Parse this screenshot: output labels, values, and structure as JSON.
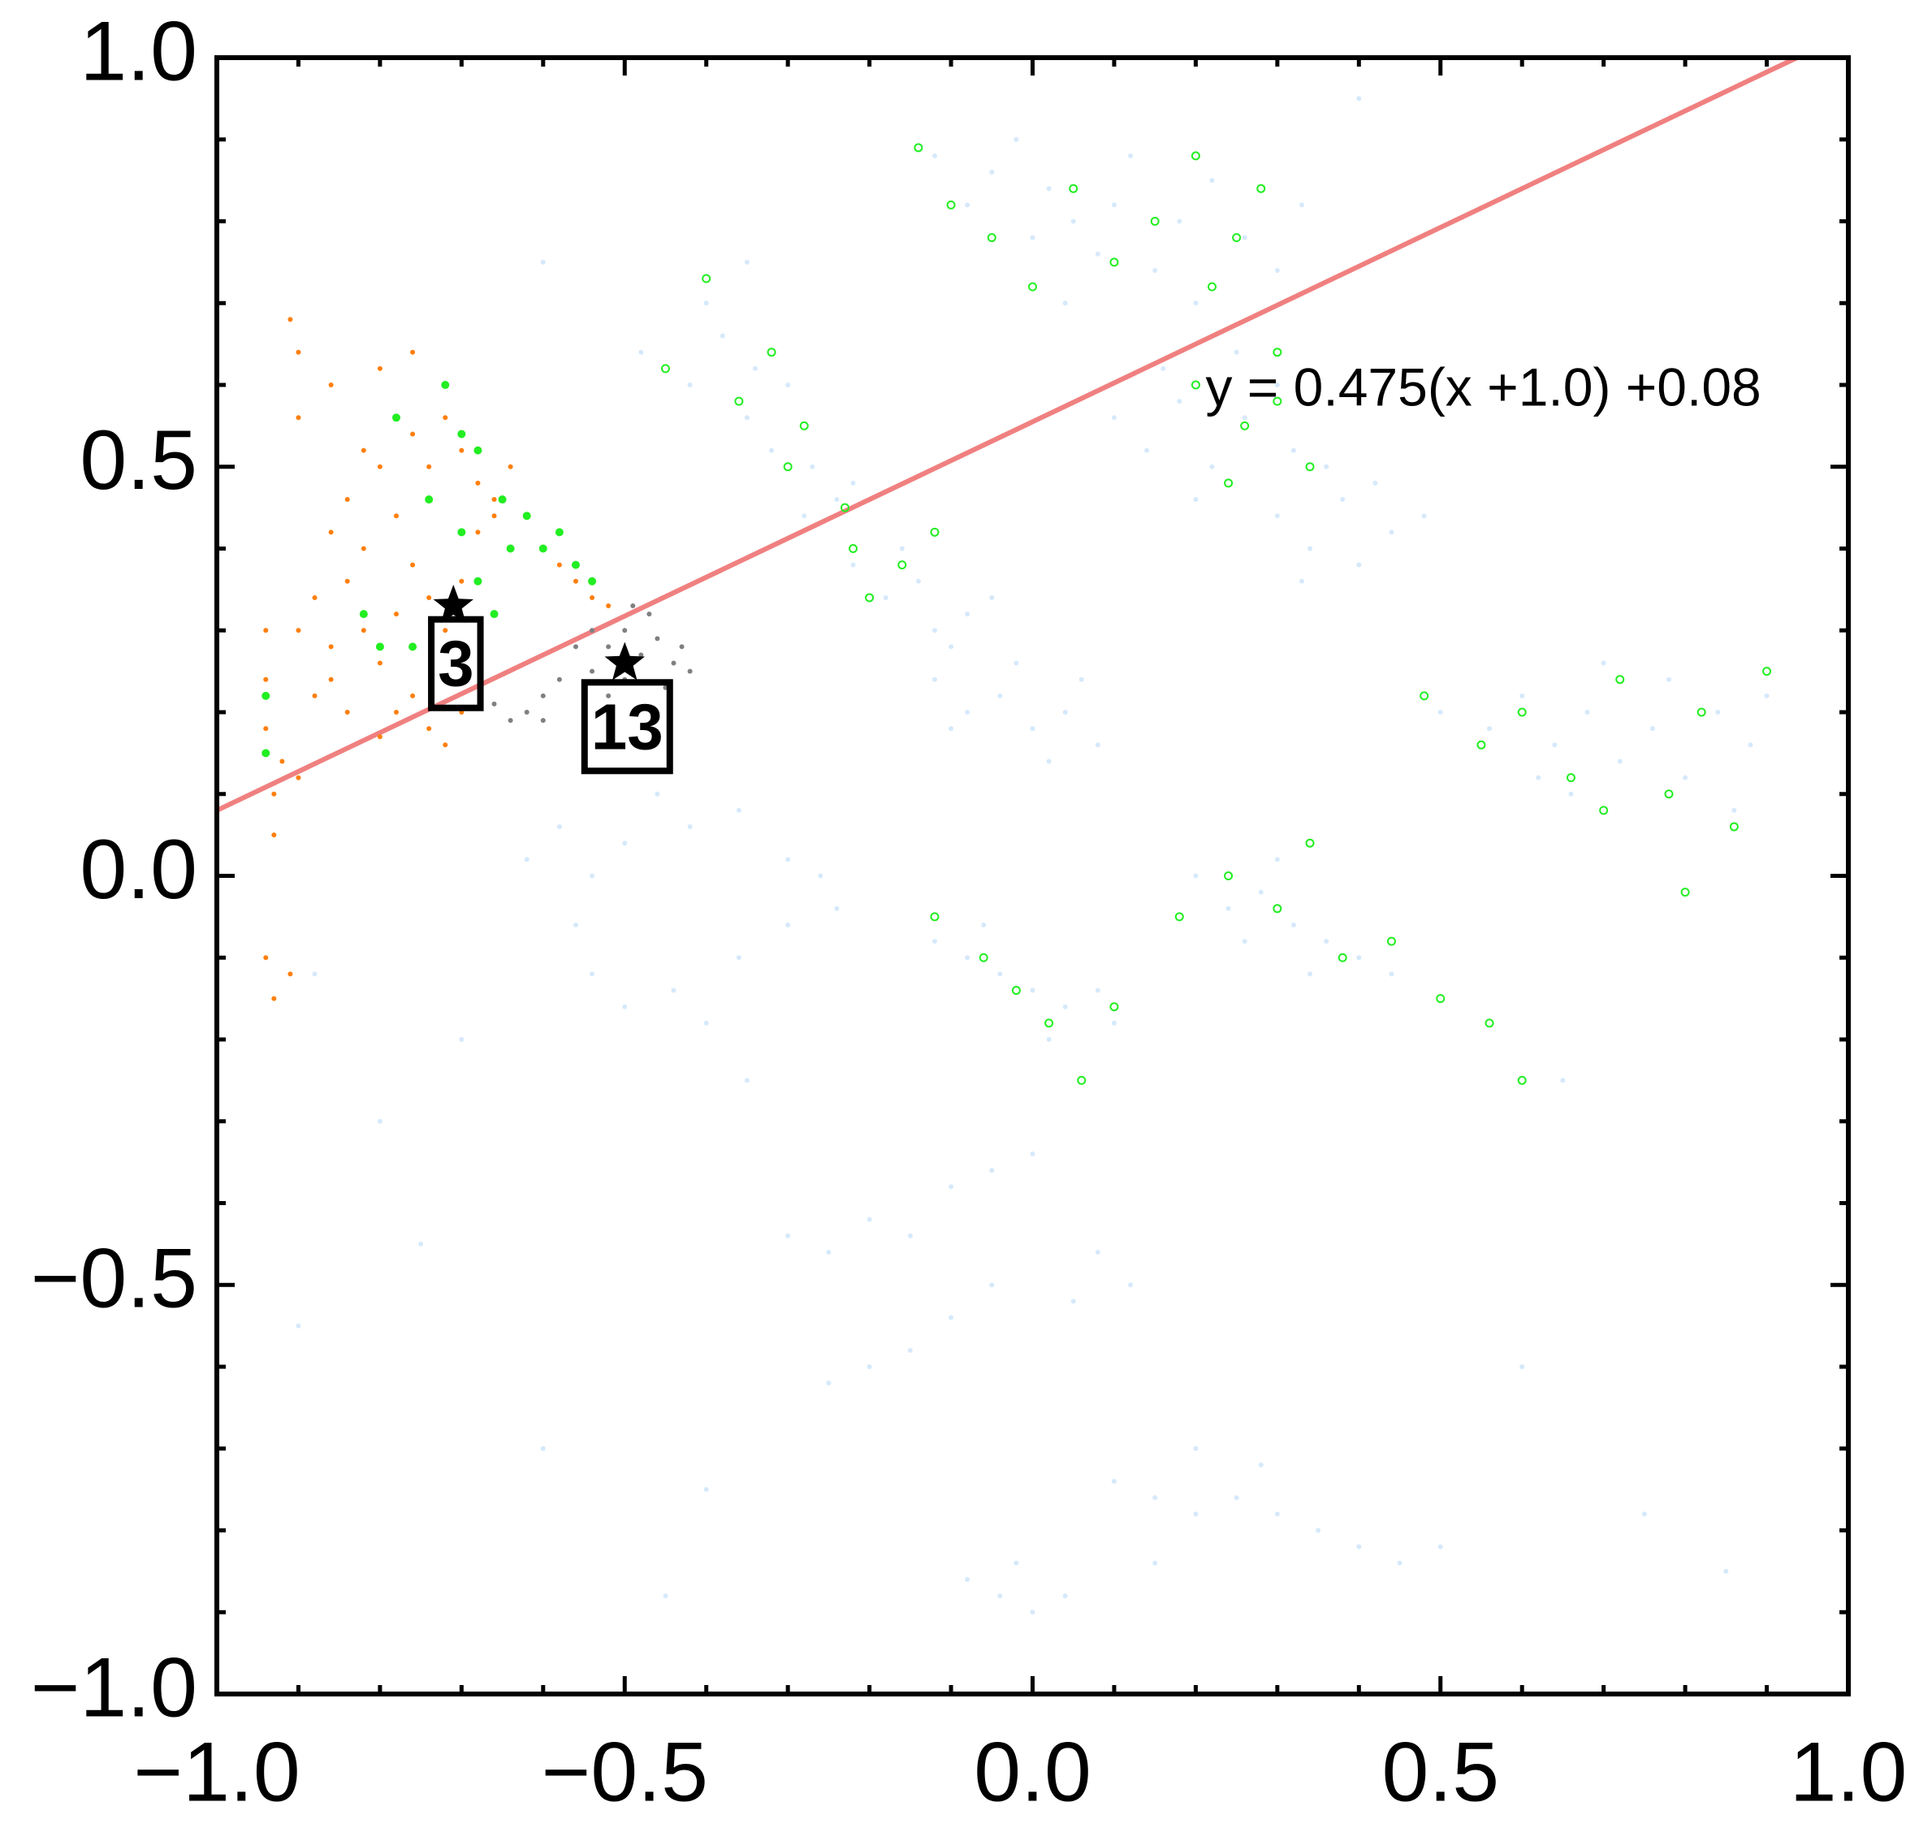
{
  "chart_data": {
    "type": "scatter",
    "xlim": [
      -1.0,
      1.0
    ],
    "ylim": [
      -1.0,
      1.0
    ],
    "xticks": [
      {
        "value": -1.0,
        "label": "−1.0"
      },
      {
        "value": -0.5,
        "label": "−0.5"
      },
      {
        "value": 0.0,
        "label": "0.0"
      },
      0.5,
      {
        "value": 1.0,
        "label": "1.0"
      }
    ],
    "yticks": [
      {
        "value": -1.0,
        "label": "−1.0"
      },
      {
        "value": -0.5,
        "label": "−0.5"
      },
      {
        "value": 0.0,
        "label": "0.0"
      },
      0.5,
      {
        "value": 1.0,
        "label": "1.0"
      }
    ],
    "xminorticks": [
      -0.9,
      -0.8,
      -0.7,
      -0.6,
      -0.4,
      -0.3,
      -0.2,
      -0.1,
      0.1,
      0.2,
      0.3,
      0.4,
      0.6,
      0.7,
      0.8,
      0.9
    ],
    "yminorticks": [
      -0.9,
      -0.8,
      -0.7,
      -0.6,
      -0.4,
      -0.3,
      -0.2,
      -0.1,
      0.1,
      0.2,
      0.3,
      0.4,
      0.6,
      0.7,
      0.8,
      0.9
    ],
    "series": [
      {
        "color": "#d6e9fb",
        "marker": "dot",
        "x": [
          -0.12,
          -0.08,
          -0.05,
          0.0,
          0.02,
          0.05,
          0.08,
          0.1,
          0.12,
          0.15,
          0.18,
          0.22,
          0.26,
          0.3,
          0.04,
          -0.02,
          0.2,
          0.33,
          -0.48,
          -0.42,
          -0.38,
          -0.35,
          -0.32,
          -0.3,
          -0.27,
          -0.24,
          -0.4,
          -0.28,
          -0.34,
          -0.22,
          -0.22,
          -0.18,
          -0.14,
          -0.12,
          -0.08,
          -0.16,
          -0.1,
          -0.05,
          -0.12,
          -0.08,
          -0.04,
          0.0,
          0.04,
          0.08,
          -0.02,
          0.02,
          -0.1,
          0.06,
          0.1,
          0.14,
          0.18,
          0.22,
          0.26,
          0.3,
          0.2,
          0.16,
          0.32,
          0.25,
          0.3,
          0.34,
          0.38,
          0.4,
          0.44,
          0.36,
          0.42,
          0.48,
          0.33,
          0.5,
          0.56,
          0.6,
          0.64,
          0.68,
          0.72,
          0.76,
          0.8,
          0.84,
          0.88,
          0.9,
          0.7,
          0.66,
          0.78,
          0.62,
          0.86,
          0.2,
          0.24,
          0.28,
          0.32,
          0.36,
          0.4,
          0.3,
          0.44,
          0.34,
          0.26,
          -0.12,
          -0.08,
          -0.04,
          0.0,
          0.04,
          0.08,
          -0.06,
          0.02,
          0.1,
          -0.62,
          -0.58,
          -0.54,
          -0.5,
          -0.46,
          -0.42,
          -0.36,
          -0.3,
          -0.26,
          -0.24,
          -0.3,
          -0.36,
          -0.44,
          -0.5,
          -0.54,
          -0.4,
          -0.56,
          -0.3,
          -0.25,
          -0.2,
          -0.15,
          -0.1,
          -0.05,
          0.0,
          0.08,
          0.12,
          0.05,
          -0.1,
          -0.15,
          -0.2,
          -0.25,
          -0.05,
          0.1,
          0.15,
          0.2,
          0.25,
          0.3,
          0.35,
          0.4,
          0.45,
          0.2,
          0.28,
          0.15,
          0.5,
          -0.08,
          -0.04,
          0.0,
          0.04,
          -0.02,
          -0.88,
          -0.8,
          -0.75,
          -0.9,
          -0.6,
          -0.4,
          -0.35,
          -0.7,
          0.65,
          0.75,
          0.85,
          0.6,
          -0.6,
          -0.35,
          0.4,
          -0.45
        ],
        "values": [
          0.88,
          0.82,
          0.86,
          0.78,
          0.84,
          0.8,
          0.76,
          0.82,
          0.88,
          0.74,
          0.8,
          0.85,
          0.78,
          0.74,
          0.7,
          0.9,
          0.7,
          0.82,
          0.64,
          0.6,
          0.66,
          0.56,
          0.52,
          0.6,
          0.5,
          0.46,
          0.7,
          0.44,
          0.62,
          0.48,
          0.38,
          0.34,
          0.36,
          0.3,
          0.32,
          0.4,
          0.28,
          0.34,
          0.24,
          0.2,
          0.22,
          0.18,
          0.2,
          0.16,
          0.26,
          0.14,
          0.18,
          0.24,
          0.56,
          0.52,
          0.58,
          0.5,
          0.56,
          0.6,
          0.46,
          0.62,
          0.52,
          0.64,
          0.44,
          0.4,
          0.46,
          0.38,
          0.42,
          0.5,
          0.48,
          0.44,
          0.36,
          0.2,
          0.18,
          0.22,
          0.16,
          0.2,
          0.14,
          0.18,
          0.12,
          0.2,
          0.16,
          0.22,
          0.26,
          0.1,
          0.24,
          0.12,
          0.08,
          0.0,
          -0.04,
          -0.02,
          -0.06,
          -0.08,
          -0.1,
          0.02,
          -0.12,
          -0.12,
          -0.08,
          -0.08,
          -0.1,
          -0.12,
          -0.14,
          -0.16,
          -0.14,
          -0.06,
          -0.2,
          -0.18,
          0.02,
          0.06,
          0.0,
          0.04,
          0.1,
          0.06,
          0.08,
          0.02,
          0.0,
          -0.04,
          -0.06,
          -0.1,
          -0.14,
          -0.16,
          -0.12,
          -0.18,
          -0.06,
          -0.44,
          -0.46,
          -0.42,
          -0.44,
          -0.38,
          -0.36,
          -0.34,
          -0.46,
          -0.5,
          -0.52,
          -0.54,
          -0.58,
          -0.6,
          -0.62,
          -0.5,
          -0.74,
          -0.76,
          -0.78,
          -0.76,
          -0.78,
          -0.8,
          -0.82,
          -0.84,
          -0.7,
          -0.72,
          -0.84,
          -0.82,
          -0.86,
          -0.88,
          -0.9,
          -0.88,
          -0.84,
          -0.12,
          -0.3,
          -0.45,
          -0.55,
          -0.7,
          -0.75,
          -0.25,
          -0.2,
          -0.25,
          -0.78,
          -0.85,
          -0.6,
          0.75,
          0.75,
          0.95,
          -0.88
        ]
      },
      {
        "color": "#ff7f0e",
        "marker": "dot",
        "x": [
          -0.94,
          -0.94,
          -0.94,
          -0.93,
          -0.93,
          -0.92,
          -0.9,
          -0.94,
          -0.93,
          -0.91,
          -0.9,
          -0.88,
          -0.86,
          -0.84,
          -0.82,
          -0.8,
          -0.78,
          -0.76,
          -0.74,
          -0.72,
          -0.7,
          -0.68,
          -0.66,
          -0.64,
          -0.62,
          -0.6,
          -0.58,
          -0.56,
          -0.54,
          -0.52,
          -0.84,
          -0.82,
          -0.8,
          -0.78,
          -0.76,
          -0.74,
          -0.72,
          -0.7,
          -0.68,
          -0.66,
          -0.78,
          -0.82,
          -0.86,
          -0.9,
          -0.9,
          -0.91,
          -0.86,
          -0.8,
          -0.76,
          -0.76,
          -0.74,
          -0.72,
          -0.7,
          -0.78,
          -0.8,
          -0.84,
          -0.86,
          -0.88
        ],
        "values": [
          0.3,
          0.24,
          0.18,
          0.1,
          0.05,
          0.14,
          0.12,
          -0.1,
          -0.15,
          -0.12,
          0.3,
          0.34,
          0.28,
          0.36,
          0.3,
          0.26,
          0.32,
          0.38,
          0.34,
          0.3,
          0.36,
          0.42,
          0.46,
          0.5,
          0.44,
          0.4,
          0.38,
          0.36,
          0.34,
          0.33,
          0.46,
          0.52,
          0.5,
          0.56,
          0.54,
          0.5,
          0.56,
          0.52,
          0.48,
          0.44,
          0.44,
          0.4,
          0.42,
          0.56,
          0.64,
          0.68,
          0.6,
          0.62,
          0.64,
          0.22,
          0.18,
          0.16,
          0.2,
          0.2,
          0.17,
          0.2,
          0.24,
          0.22
        ]
      },
      {
        "color": "#22ee22",
        "marker": "dot-large",
        "x": [
          -0.94,
          -0.94,
          -0.82,
          -0.76,
          -0.72,
          -0.7,
          -0.68,
          -0.65,
          -0.62,
          -0.6,
          -0.58,
          -0.56,
          -0.54,
          -0.64,
          -0.7,
          -0.78,
          -0.74,
          -0.8,
          -0.68,
          -0.66
        ],
        "values": [
          0.22,
          0.15,
          0.32,
          0.28,
          0.6,
          0.54,
          0.52,
          0.46,
          0.44,
          0.4,
          0.42,
          0.38,
          0.36,
          0.4,
          0.42,
          0.56,
          0.46,
          0.28,
          0.36,
          0.32
        ]
      },
      {
        "color": "#808080",
        "marker": "dot",
        "x": [
          -0.54,
          -0.52,
          -0.5,
          -0.48,
          -0.46,
          -0.44,
          -0.42,
          -0.5,
          -0.54,
          -0.56,
          -0.47,
          -0.45,
          -0.52,
          -0.58,
          -0.6,
          -0.62,
          -0.64,
          -0.66,
          -0.6,
          -0.55,
          -0.49,
          -0.43
        ],
        "values": [
          0.3,
          0.28,
          0.3,
          0.27,
          0.29,
          0.26,
          0.25,
          0.24,
          0.25,
          0.28,
          0.32,
          0.23,
          0.22,
          0.24,
          0.22,
          0.2,
          0.19,
          0.21,
          0.19,
          0.2,
          0.33,
          0.28
        ]
      },
      {
        "color": "#22ee22",
        "marker": "ring",
        "x": [
          -0.14,
          -0.1,
          -0.05,
          0.0,
          0.05,
          0.1,
          0.15,
          0.2,
          0.25,
          0.28,
          0.22,
          -0.45,
          -0.36,
          -0.32,
          -0.3,
          -0.28,
          -0.23,
          -0.4,
          -0.22,
          -0.2,
          -0.16,
          -0.12,
          0.2,
          0.26,
          0.3,
          0.34,
          0.24,
          0.3,
          0.48,
          0.55,
          0.6,
          0.66,
          0.72,
          0.78,
          0.82,
          0.86,
          0.9,
          0.8,
          0.7,
          0.18,
          0.24,
          0.3,
          0.34,
          0.38,
          0.44,
          0.5,
          0.56,
          0.6,
          -0.12,
          -0.06,
          -0.02,
          0.02,
          0.06,
          0.1
        ],
        "values": [
          0.89,
          0.82,
          0.78,
          0.72,
          0.84,
          0.75,
          0.8,
          0.88,
          0.78,
          0.84,
          0.72,
          0.62,
          0.58,
          0.64,
          0.5,
          0.55,
          0.45,
          0.73,
          0.4,
          0.34,
          0.38,
          0.42,
          0.6,
          0.55,
          0.64,
          0.5,
          0.48,
          0.58,
          0.22,
          0.16,
          0.2,
          0.12,
          0.24,
          0.1,
          0.2,
          0.06,
          0.25,
          -0.02,
          0.08,
          -0.05,
          0.0,
          -0.04,
          0.04,
          -0.1,
          -0.08,
          -0.15,
          -0.18,
          -0.25,
          -0.05,
          -0.1,
          -0.14,
          -0.18,
          -0.25,
          -0.16
        ]
      },
      {
        "color": "#000000",
        "marker": "star",
        "x": [
          -0.71,
          -0.5
        ],
        "values": [
          0.33,
          0.26
        ]
      }
    ],
    "fit_line": {
      "color": "#f08080",
      "x": [
        -1.0,
        0.937
      ],
      "values": [
        0.08,
        1.0
      ]
    },
    "annotations": [
      {
        "text": "3",
        "x": -0.707,
        "y": 0.257,
        "boxed": true
      },
      {
        "text": "13",
        "x": -0.497,
        "y": 0.18,
        "boxed": true
      },
      {
        "text": "y = 0.475(x +1.0) +0.08",
        "x": 0.212,
        "y": 0.592,
        "boxed": false
      }
    ]
  }
}
